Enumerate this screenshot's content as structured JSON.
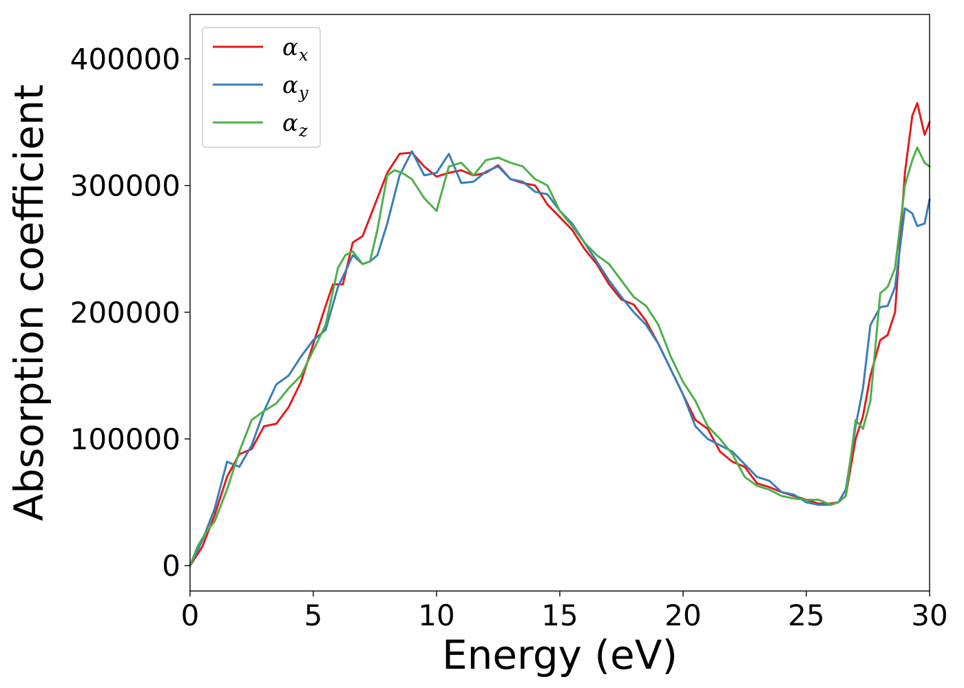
{
  "chart_data": {
    "type": "line",
    "title": "",
    "xlabel": "Energy (eV)",
    "ylabel": "Absorption coefficient",
    "xlim": [
      0,
      30
    ],
    "ylim": [
      -20000,
      435000
    ],
    "xticks": [
      0,
      5,
      10,
      15,
      20,
      25,
      30
    ],
    "yticks": [
      0,
      100000,
      200000,
      300000,
      400000
    ],
    "grid": false,
    "legend_position": "top-left",
    "series": [
      {
        "name": "α",
        "subscript": "x",
        "color": "#e41a1c",
        "x": [
          0,
          0.5,
          1,
          1.5,
          2,
          2.5,
          3,
          3.5,
          4,
          4.5,
          5,
          5.5,
          5.8,
          6.2,
          6.6,
          7,
          7.5,
          8,
          8.5,
          9,
          9.5,
          10,
          10.5,
          11,
          11.5,
          12,
          12.5,
          13,
          13.5,
          14,
          14.5,
          15,
          15.5,
          16,
          16.5,
          17,
          17.5,
          18,
          18.5,
          19,
          19.5,
          20,
          20.5,
          21,
          21.5,
          22,
          22.5,
          23,
          23.5,
          24,
          24.5,
          25,
          25.5,
          26,
          26.3,
          26.6,
          27,
          27.3,
          27.6,
          28,
          28.3,
          28.6,
          29,
          29.3,
          29.5,
          29.8,
          30
        ],
        "y": [
          0,
          15000,
          40000,
          70000,
          88000,
          92000,
          110000,
          112000,
          125000,
          145000,
          175000,
          205000,
          222000,
          222000,
          255000,
          260000,
          285000,
          310000,
          325000,
          326000,
          315000,
          307000,
          310000,
          312000,
          308000,
          310000,
          316000,
          305000,
          302000,
          300000,
          285000,
          275000,
          265000,
          250000,
          238000,
          222000,
          210000,
          206000,
          193000,
          175000,
          155000,
          135000,
          115000,
          108000,
          90000,
          82000,
          78000,
          65000,
          62000,
          58000,
          55000,
          52000,
          49000,
          49000,
          50000,
          55000,
          100000,
          118000,
          150000,
          178000,
          182000,
          200000,
          310000,
          355000,
          365000,
          340000,
          350000
        ]
      },
      {
        "name": "α",
        "subscript": "y",
        "color": "#377eb8",
        "x": [
          0,
          0.5,
          1,
          1.5,
          2,
          2.5,
          3,
          3.5,
          4,
          4.5,
          5,
          5.5,
          6,
          6.3,
          6.6,
          7,
          7.3,
          7.6,
          8,
          8.5,
          9,
          9.5,
          10,
          10.5,
          11,
          11.5,
          12,
          12.5,
          13,
          13.5,
          14,
          14.5,
          15,
          15.5,
          16,
          16.5,
          17,
          17.5,
          18,
          18.5,
          19,
          19.5,
          20,
          20.5,
          21,
          21.5,
          22,
          22.5,
          23,
          23.5,
          24,
          24.5,
          25,
          25.5,
          26,
          26.3,
          26.6,
          27,
          27.3,
          27.6,
          28,
          28.3,
          28.6,
          29,
          29.3,
          29.5,
          29.8,
          30
        ],
        "y": [
          0,
          20000,
          45000,
          82000,
          78000,
          95000,
          122000,
          143000,
          150000,
          165000,
          178000,
          186000,
          220000,
          232000,
          245000,
          238000,
          240000,
          245000,
          270000,
          308000,
          327000,
          308000,
          310000,
          325000,
          302000,
          303000,
          311000,
          315000,
          305000,
          303000,
          295000,
          293000,
          280000,
          270000,
          255000,
          240000,
          225000,
          212000,
          200000,
          190000,
          175000,
          155000,
          135000,
          110000,
          100000,
          95000,
          90000,
          80000,
          70000,
          67000,
          58000,
          56000,
          50000,
          48000,
          48000,
          50000,
          60000,
          110000,
          140000,
          190000,
          204000,
          205000,
          220000,
          282000,
          278000,
          268000,
          270000,
          289000
        ]
      },
      {
        "name": "α",
        "subscript": "z",
        "color": "#4daf4a",
        "x": [
          0,
          0.3,
          0.6,
          1,
          1.5,
          2,
          2.5,
          3,
          3.5,
          4,
          4.5,
          5,
          5.5,
          6,
          6.3,
          6.6,
          7,
          7.3,
          7.6,
          8,
          8.3,
          8.6,
          9,
          9.5,
          10,
          10.5,
          11,
          11.5,
          12,
          12.5,
          13,
          13.5,
          14,
          14.5,
          15,
          15.5,
          16,
          16.5,
          17,
          17.5,
          18,
          18.5,
          19,
          19.5,
          20,
          20.5,
          21,
          21.5,
          22,
          22.5,
          23,
          23.5,
          24,
          24.5,
          25,
          25.5,
          26,
          26.3,
          26.6,
          27,
          27.3,
          27.6,
          28,
          28.3,
          28.6,
          29,
          29.3,
          29.5,
          29.8,
          30
        ],
        "y": [
          0,
          15000,
          25000,
          35000,
          60000,
          90000,
          115000,
          122000,
          128000,
          140000,
          150000,
          170000,
          190000,
          235000,
          245000,
          248000,
          238000,
          240000,
          265000,
          308000,
          312000,
          310000,
          305000,
          290000,
          280000,
          315000,
          318000,
          308000,
          320000,
          322000,
          318000,
          315000,
          305000,
          300000,
          280000,
          268000,
          255000,
          245000,
          238000,
          225000,
          212000,
          205000,
          190000,
          165000,
          145000,
          130000,
          110000,
          100000,
          88000,
          70000,
          63000,
          60000,
          55000,
          53000,
          52000,
          52000,
          48000,
          50000,
          55000,
          115000,
          108000,
          130000,
          215000,
          220000,
          235000,
          300000,
          320000,
          330000,
          318000,
          315000
        ]
      }
    ]
  }
}
